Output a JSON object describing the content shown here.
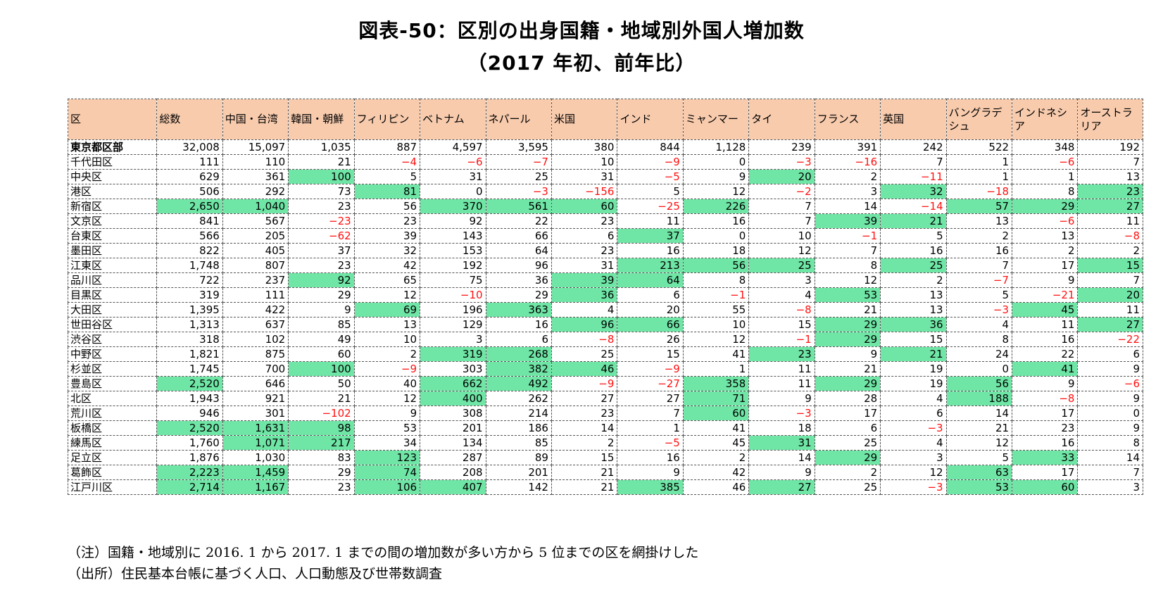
{
  "title": "図表-50：区別の出身国籍・地域別外国人増加数",
  "subtitle": "（2017 年初、前年比）",
  "chart_data": {
    "type": "table",
    "columns": [
      "区",
      "総数",
      "中国・台湾",
      "韓国・朝鮮",
      "フィリピン",
      "ベトナム",
      "ネパール",
      "米国",
      "インド",
      "ミャンマー",
      "タイ",
      "フランス",
      "英国",
      "バングラデシュ",
      "インドネシア",
      "オーストラリア"
    ],
    "highlight_color": "#6fe6a6",
    "negative_color": "#ff1010",
    "header_color": "#f8cbad",
    "rows": [
      {
        "ward": "東京都区部",
        "values": [
          "32,008",
          "15,097",
          "1,035",
          "887",
          "4,597",
          "3,595",
          "380",
          "844",
          "1,128",
          "239",
          "391",
          "242",
          "522",
          "348",
          "192"
        ],
        "hl": []
      },
      {
        "ward": "千代田区",
        "values": [
          "111",
          "110",
          "21",
          "−4",
          "−6",
          "−7",
          "10",
          "−9",
          "0",
          "−3",
          "−16",
          "7",
          "1",
          "−6",
          "7"
        ],
        "hl": []
      },
      {
        "ward": "中央区",
        "values": [
          "629",
          "361",
          "100",
          "5",
          "31",
          "25",
          "31",
          "−5",
          "9",
          "20",
          "2",
          "−11",
          "1",
          "1",
          "13"
        ],
        "hl": [
          2,
          9
        ]
      },
      {
        "ward": "港区",
        "values": [
          "506",
          "292",
          "73",
          "81",
          "0",
          "−3",
          "−156",
          "5",
          "12",
          "−2",
          "3",
          "32",
          "−18",
          "8",
          "23"
        ],
        "hl": [
          3,
          11,
          14
        ]
      },
      {
        "ward": "新宿区",
        "values": [
          "2,650",
          "1,040",
          "23",
          "56",
          "370",
          "561",
          "60",
          "−25",
          "226",
          "7",
          "14",
          "−14",
          "57",
          "29",
          "27"
        ],
        "hl": [
          0,
          1,
          4,
          5,
          6,
          8,
          12,
          13,
          14
        ]
      },
      {
        "ward": "文京区",
        "values": [
          "841",
          "567",
          "−23",
          "23",
          "92",
          "22",
          "23",
          "11",
          "16",
          "7",
          "39",
          "21",
          "13",
          "−6",
          "11"
        ],
        "hl": [
          10,
          11
        ]
      },
      {
        "ward": "台東区",
        "values": [
          "566",
          "205",
          "−62",
          "39",
          "143",
          "66",
          "6",
          "37",
          "0",
          "10",
          "−1",
          "5",
          "2",
          "13",
          "−8"
        ],
        "hl": [
          7
        ]
      },
      {
        "ward": "墨田区",
        "values": [
          "822",
          "405",
          "37",
          "32",
          "153",
          "64",
          "23",
          "16",
          "18",
          "12",
          "7",
          "16",
          "16",
          "2",
          "2"
        ],
        "hl": []
      },
      {
        "ward": "江東区",
        "values": [
          "1,748",
          "807",
          "23",
          "42",
          "192",
          "96",
          "31",
          "213",
          "56",
          "25",
          "8",
          "25",
          "7",
          "17",
          "15"
        ],
        "hl": [
          7,
          8,
          9,
          11,
          14
        ]
      },
      {
        "ward": "品川区",
        "values": [
          "722",
          "237",
          "92",
          "65",
          "75",
          "36",
          "39",
          "64",
          "8",
          "3",
          "12",
          "2",
          "−7",
          "9",
          "7"
        ],
        "hl": [
          2,
          6,
          7
        ]
      },
      {
        "ward": "目黒区",
        "values": [
          "319",
          "111",
          "29",
          "12",
          "−10",
          "29",
          "36",
          "6",
          "−1",
          "4",
          "53",
          "13",
          "5",
          "−21",
          "20"
        ],
        "hl": [
          6,
          10,
          14
        ]
      },
      {
        "ward": "大田区",
        "values": [
          "1,395",
          "422",
          "9",
          "69",
          "196",
          "363",
          "4",
          "20",
          "55",
          "−8",
          "21",
          "13",
          "−3",
          "45",
          "11"
        ],
        "hl": [
          3,
          5,
          13
        ]
      },
      {
        "ward": "世田谷区",
        "values": [
          "1,313",
          "637",
          "85",
          "13",
          "129",
          "16",
          "96",
          "66",
          "10",
          "15",
          "29",
          "36",
          "4",
          "11",
          "27"
        ],
        "hl": [
          6,
          7,
          10,
          11,
          14
        ]
      },
      {
        "ward": "渋谷区",
        "values": [
          "318",
          "102",
          "49",
          "10",
          "3",
          "6",
          "−8",
          "26",
          "12",
          "−1",
          "29",
          "15",
          "8",
          "16",
          "−22"
        ],
        "hl": [
          10
        ]
      },
      {
        "ward": "中野区",
        "values": [
          "1,821",
          "875",
          "60",
          "2",
          "319",
          "268",
          "25",
          "15",
          "41",
          "23",
          "9",
          "21",
          "24",
          "22",
          "6"
        ],
        "hl": [
          4,
          5,
          9,
          11
        ]
      },
      {
        "ward": "杉並区",
        "values": [
          "1,745",
          "700",
          "100",
          "−9",
          "303",
          "382",
          "46",
          "−9",
          "1",
          "11",
          "21",
          "19",
          "0",
          "41",
          "9"
        ],
        "hl": [
          2,
          5,
          6,
          13
        ]
      },
      {
        "ward": "豊島区",
        "values": [
          "2,520",
          "646",
          "50",
          "40",
          "662",
          "492",
          "−9",
          "−27",
          "358",
          "11",
          "29",
          "19",
          "56",
          "9",
          "−6"
        ],
        "hl": [
          0,
          4,
          5,
          8,
          10,
          12
        ]
      },
      {
        "ward": "北区",
        "values": [
          "1,943",
          "921",
          "21",
          "12",
          "400",
          "262",
          "27",
          "27",
          "71",
          "9",
          "28",
          "4",
          "188",
          "−8",
          "9"
        ],
        "hl": [
          4,
          8,
          12
        ]
      },
      {
        "ward": "荒川区",
        "values": [
          "946",
          "301",
          "−102",
          "9",
          "308",
          "214",
          "23",
          "7",
          "60",
          "−3",
          "17",
          "6",
          "14",
          "17",
          "0"
        ],
        "hl": [
          8
        ]
      },
      {
        "ward": "板橋区",
        "values": [
          "2,520",
          "1,631",
          "98",
          "53",
          "201",
          "186",
          "14",
          "1",
          "41",
          "18",
          "6",
          "−3",
          "21",
          "23",
          "9"
        ],
        "hl": [
          0,
          1,
          2
        ]
      },
      {
        "ward": "練馬区",
        "values": [
          "1,760",
          "1,071",
          "217",
          "34",
          "134",
          "85",
          "2",
          "−5",
          "45",
          "31",
          "25",
          "4",
          "12",
          "16",
          "8"
        ],
        "hl": [
          1,
          2,
          9
        ]
      },
      {
        "ward": "足立区",
        "values": [
          "1,876",
          "1,030",
          "83",
          "123",
          "287",
          "89",
          "15",
          "16",
          "2",
          "14",
          "29",
          "3",
          "5",
          "33",
          "14"
        ],
        "hl": [
          3,
          10,
          13
        ]
      },
      {
        "ward": "葛飾区",
        "values": [
          "2,223",
          "1,459",
          "29",
          "74",
          "208",
          "201",
          "21",
          "9",
          "42",
          "9",
          "2",
          "12",
          "63",
          "17",
          "7"
        ],
        "hl": [
          0,
          1,
          3,
          12
        ]
      },
      {
        "ward": "江戸川区",
        "values": [
          "2,714",
          "1,167",
          "23",
          "106",
          "407",
          "142",
          "21",
          "385",
          "46",
          "27",
          "25",
          "−3",
          "53",
          "60",
          "3"
        ],
        "hl": [
          0,
          1,
          3,
          4,
          7,
          9,
          12,
          13
        ]
      }
    ]
  },
  "notes": {
    "note": "（注）国籍・地域別に 2016. 1 から 2017. 1 までの間の増加数が多い方から 5 位までの区を網掛けした",
    "source": "（出所）住民基本台帳に基づく人口、人口動態及び世帯数調査"
  }
}
